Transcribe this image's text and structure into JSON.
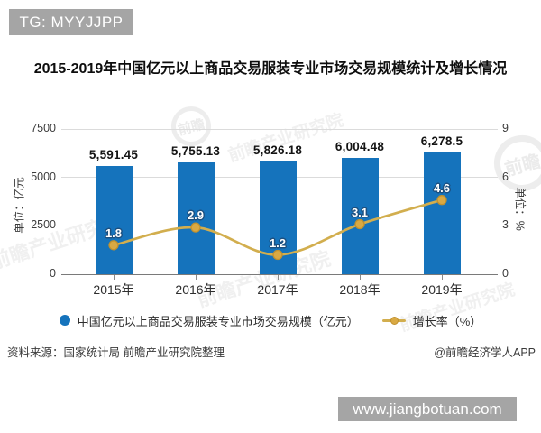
{
  "header": {
    "tag": "TG: MYYJJPP"
  },
  "title": "2015-2019年中国亿元以上商品交易服装专业市场交易规模统计及增长情况",
  "chart_data": {
    "type": "bar+line",
    "categories": [
      "2015年",
      "2016年",
      "2017年",
      "2018年",
      "2019年"
    ],
    "series": [
      {
        "name": "中国亿元以上商品交易服装专业市场交易规模（亿元）",
        "type": "bar",
        "axis": "left",
        "values": [
          5591.45,
          5755.13,
          5826.18,
          6004.48,
          6278.5
        ],
        "labels": [
          "5,591.45",
          "5,755.13",
          "5,826.18",
          "6,004.48",
          "6,278.5"
        ],
        "color": "#1573bc"
      },
      {
        "name": "增长率（%）",
        "type": "line",
        "axis": "right",
        "values": [
          1.8,
          2.9,
          1.2,
          3.1,
          4.6
        ],
        "labels": [
          "1.8",
          "2.9",
          "1.2",
          "3.1",
          "4.6"
        ],
        "color": "#d2ae4e"
      }
    ],
    "axes": {
      "left": {
        "title": "单位：亿元",
        "ticks": [
          0,
          2500,
          5000,
          7500
        ],
        "min": 0,
        "max": 7500
      },
      "right": {
        "title": "单位：%",
        "ticks": [
          0,
          3,
          6,
          9
        ],
        "min": 0,
        "max": 9
      }
    },
    "grid": true,
    "legend_position": "bottom"
  },
  "legend": {
    "items": [
      {
        "label": "中国亿元以上商品交易服装专业市场交易规模（亿元）",
        "marker": "circle",
        "color": "#1573bc"
      },
      {
        "label": "增长率（%）",
        "marker": "line-dot",
        "color": "#d2ae4e"
      }
    ]
  },
  "footer": {
    "source": "资料来源：国家统计局 前瞻产业研究院整理",
    "credit": "@前瞻经济学人APP",
    "site": "www.jiangbotuan.com"
  },
  "watermark": {
    "text": "前瞻产业研究院",
    "logo_text": "前瞻"
  },
  "colors": {
    "bar": "#1573bc",
    "line": "#d2ae4e",
    "marker_fill": "#d9a943",
    "marker_stroke": "#c0912f",
    "label_outline": "#1c5080",
    "badge_bg": "#a5a5a5"
  }
}
